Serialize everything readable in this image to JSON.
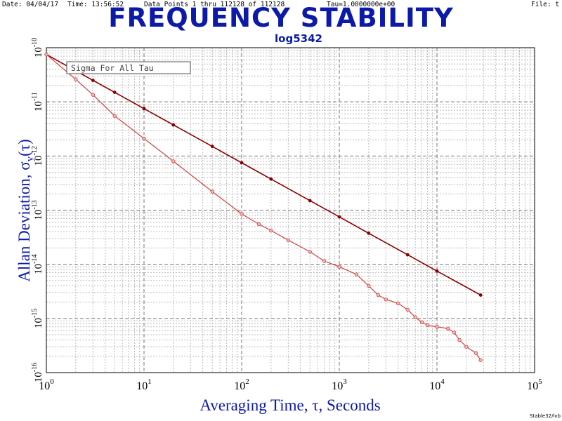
{
  "header": {
    "date": "Date: 04/04/17",
    "time": "Time: 13:56:52",
    "points": "Data Points 1 thru 112128 of 112128",
    "tau": "Tau=1.0000000e+00",
    "file": "File: t"
  },
  "footer": "Stable32/lvb",
  "colors": {
    "title": "#0b1aa8",
    "series1": "#8b0000",
    "series2": "#d04040"
  },
  "chart_data": {
    "type": "line",
    "title": "FREQUENCY STABILITY",
    "subtitle": "log5342",
    "xlabel": "Averaging Time, τ, Seconds",
    "ylabel_main": "Allan Deviation, σ",
    "ylabel_sub": "y",
    "ylabel_paren": "(τ)",
    "x_scale": "log",
    "y_scale": "log",
    "xlim": [
      1,
      100000
    ],
    "ylim": [
      1e-16,
      1e-10
    ],
    "grid": true,
    "legend": "Sigma For All Tau",
    "legend_position": "top-left",
    "x_tick_labels": [
      {
        "base": "10",
        "exp": "0"
      },
      {
        "base": "10",
        "exp": "1"
      },
      {
        "base": "10",
        "exp": "2"
      },
      {
        "base": "10",
        "exp": "3"
      },
      {
        "base": "10",
        "exp": "4"
      },
      {
        "base": "10",
        "exp": "5"
      }
    ],
    "y_tick_labels": [
      {
        "base": "10",
        "exp": "-10"
      },
      {
        "base": "10",
        "exp": "-11"
      },
      {
        "base": "10",
        "exp": "-12"
      },
      {
        "base": "10",
        "exp": "-13"
      },
      {
        "base": "10",
        "exp": "-14"
      },
      {
        "base": "10",
        "exp": "-15"
      },
      {
        "base": "10",
        "exp": "-16"
      }
    ],
    "series": [
      {
        "x": [
          1,
          2,
          3,
          5,
          10,
          20,
          50,
          100,
          200,
          500,
          1000,
          2000,
          5000,
          10000,
          28000
        ],
        "y": [
          7.5e-11,
          3.75e-11,
          2.5e-11,
          1.5e-11,
          7.5e-12,
          3.75e-12,
          1.5e-12,
          7.5e-13,
          3.75e-13,
          1.5e-13,
          7.5e-14,
          3.75e-14,
          1.5e-14,
          7.5e-15,
          2.7e-15
        ]
      },
      {
        "x": [
          1,
          2,
          3,
          5,
          10,
          20,
          50,
          100,
          150,
          200,
          300,
          500,
          700,
          1000,
          1500,
          2000,
          2500,
          3000,
          4000,
          5000,
          6000,
          7000,
          8000,
          10000,
          13000,
          15000,
          17000,
          20000,
          25000,
          28000
        ],
        "y": [
          7.5e-11,
          2.6e-11,
          1.35e-11,
          5.5e-12,
          2.1e-12,
          8e-13,
          2.2e-13,
          8.5e-14,
          5.5e-14,
          4.2e-14,
          2.8e-14,
          1.7e-14,
          1.15e-14,
          9e-15,
          6.5e-15,
          4e-15,
          2.7e-15,
          2.25e-15,
          1.9e-15,
          1.45e-15,
          1.05e-15,
          8.5e-16,
          7.5e-16,
          7e-16,
          6.5e-16,
          5.5e-16,
          4e-16,
          3e-16,
          2.3e-16,
          1.7e-16
        ]
      }
    ]
  }
}
